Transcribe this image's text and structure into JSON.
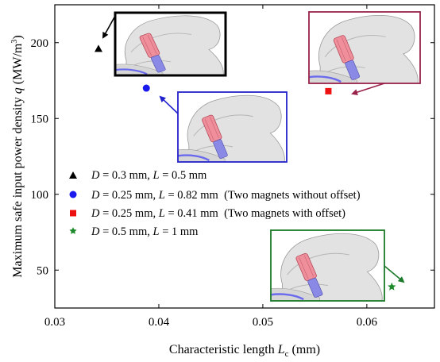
{
  "chart_data": {
    "type": "scatter",
    "title": "",
    "xlabel": {
      "main": "Characteristic length ",
      "var": "L",
      "sub": "c",
      "unit": " (mm)"
    },
    "ylabel": {
      "main": "Maximum safe input power density ",
      "var": "q",
      "unit_pre": " (MW/m",
      "unit_sup": "3",
      "unit_post": ")"
    },
    "xlim": [
      0.03,
      0.0665
    ],
    "ylim": [
      25,
      225
    ],
    "xticks": [
      0.03,
      0.04,
      0.05,
      0.06
    ],
    "xtick_labels": [
      "0.03",
      "0.04",
      "0.05",
      "0.06"
    ],
    "yticks": [
      50,
      100,
      150,
      200
    ],
    "ytick_labels": [
      "50",
      "100",
      "150",
      "200"
    ],
    "grid": false,
    "legend_position": "middle-left",
    "series": [
      {
        "marker": "triangle",
        "color": "#000000",
        "x": [
          0.0342
        ],
        "y": [
          196
        ],
        "legend": {
          "d_var": "D",
          "d_val": " = 0.3 mm, ",
          "l_var": "L",
          "l_val": " = 0.5 mm",
          "note": ""
        },
        "inset_color": "#000000"
      },
      {
        "marker": "circle",
        "color": "#1a1aee",
        "x": [
          0.0388
        ],
        "y": [
          170
        ],
        "legend": {
          "d_var": "D",
          "d_val": " = 0.25 mm, ",
          "l_var": "L",
          "l_val": " = 0.82 mm",
          "note": "  (Two magnets without offset)"
        },
        "inset_color": "#2222cc"
      },
      {
        "marker": "square",
        "color": "#ee1111",
        "x": [
          0.0563
        ],
        "y": [
          168
        ],
        "legend": {
          "d_var": "D",
          "d_val": " = 0.25 mm, ",
          "l_var": "L",
          "l_val": " = 0.41 mm",
          "note": "  (Two magnets with offset)"
        },
        "inset_color": "#99224a"
      },
      {
        "marker": "star",
        "color": "#1c8a2a",
        "x": [
          0.0624
        ],
        "y": [
          39
        ],
        "legend": {
          "d_var": "D",
          "d_val": " = 0.5 mm, ",
          "l_var": "L",
          "l_val": " = 1 mm",
          "note": ""
        },
        "inset_color": "#1c7a2a"
      }
    ]
  }
}
